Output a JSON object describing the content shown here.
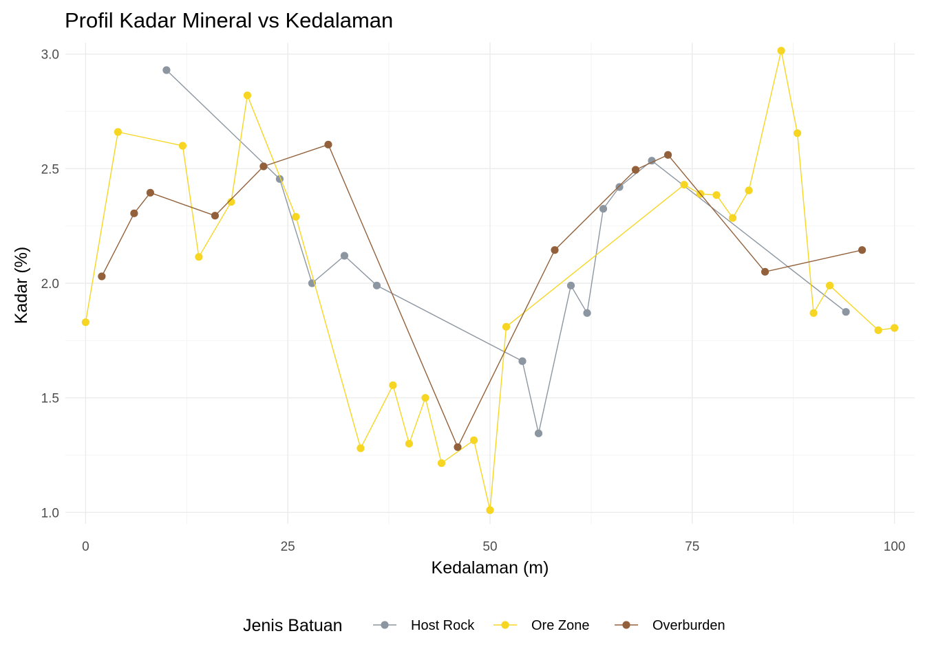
{
  "chart_data": {
    "type": "line",
    "title": "Profil Kadar Mineral vs Kedalaman",
    "xlabel": "Kedalaman (m)",
    "ylabel": "Kadar (%)",
    "xlim": [
      -2.5,
      102.5
    ],
    "ylim": [
      0.95,
      3.05
    ],
    "x_ticks": [
      0,
      25,
      50,
      75,
      100
    ],
    "y_ticks": [
      1.0,
      1.5,
      2.0,
      2.5,
      3.0
    ],
    "x_tick_labels": [
      "0",
      "25",
      "50",
      "75",
      "100"
    ],
    "y_tick_labels": [
      "1.0",
      "1.5",
      "2.0",
      "2.5",
      "3.0"
    ],
    "grid": true,
    "legend": {
      "title": "Jenis Batuan",
      "position": "bottom"
    },
    "series": [
      {
        "name": "Host Rock",
        "color": "#8C96A1",
        "points": [
          [
            10,
            2.93
          ],
          [
            24,
            2.455
          ],
          [
            28,
            2.0
          ],
          [
            32,
            2.12
          ],
          [
            36,
            1.99
          ],
          [
            54,
            1.66
          ],
          [
            56,
            1.345
          ],
          [
            60,
            1.99
          ],
          [
            62,
            1.87
          ],
          [
            64,
            2.325
          ],
          [
            66,
            2.42
          ],
          [
            70,
            2.535
          ],
          [
            94,
            1.875
          ]
        ]
      },
      {
        "name": "Ore Zone",
        "color": "#F6D622",
        "points": [
          [
            0,
            1.83
          ],
          [
            4,
            2.66
          ],
          [
            12,
            2.6
          ],
          [
            14,
            2.115
          ],
          [
            18,
            2.355
          ],
          [
            20,
            2.82
          ],
          [
            26,
            2.29
          ],
          [
            34,
            1.28
          ],
          [
            38,
            1.555
          ],
          [
            40,
            1.3
          ],
          [
            42,
            1.5
          ],
          [
            44,
            1.215
          ],
          [
            48,
            1.315
          ],
          [
            50,
            1.01
          ],
          [
            52,
            1.81
          ],
          [
            74,
            2.43
          ],
          [
            76,
            2.39
          ],
          [
            78,
            2.385
          ],
          [
            80,
            2.285
          ],
          [
            82,
            2.405
          ],
          [
            86,
            3.015
          ],
          [
            88,
            2.655
          ],
          [
            90,
            1.87
          ],
          [
            92,
            1.99
          ],
          [
            98,
            1.795
          ],
          [
            100,
            1.805
          ]
        ]
      },
      {
        "name": "Overburden",
        "color": "#92613B",
        "points": [
          [
            2,
            2.03
          ],
          [
            6,
            2.305
          ],
          [
            8,
            2.395
          ],
          [
            16,
            2.295
          ],
          [
            22,
            2.51
          ],
          [
            30,
            2.605
          ],
          [
            46,
            1.285
          ],
          [
            58,
            2.145
          ],
          [
            68,
            2.495
          ],
          [
            72,
            2.56
          ],
          [
            84,
            2.05
          ],
          [
            96,
            2.145
          ]
        ]
      }
    ]
  }
}
